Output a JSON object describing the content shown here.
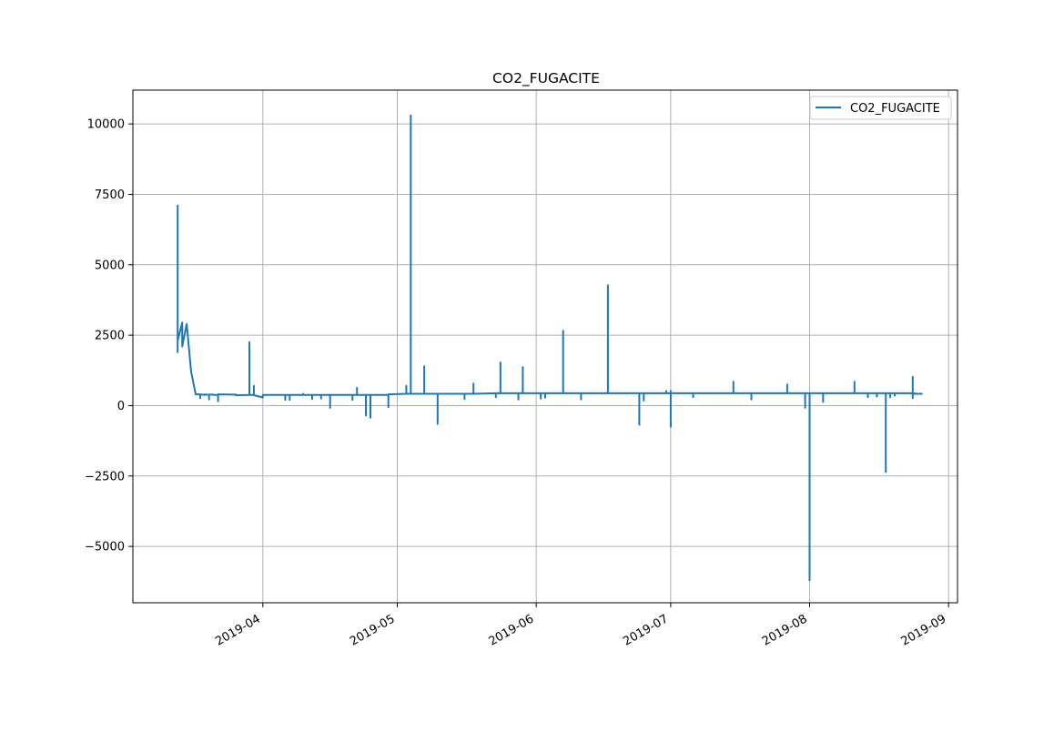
{
  "chart_data": {
    "type": "line",
    "title": "CO2_FUGACITE",
    "xlabel": "",
    "ylabel": "",
    "x_type": "date",
    "xlim": [
      "2019-03-03",
      "2019-09-03"
    ],
    "ylim": [
      -7000,
      11200
    ],
    "x_ticks": [
      "2019-04-01",
      "2019-05-01",
      "2019-06-01",
      "2019-07-01",
      "2019-08-01",
      "2019-09-01"
    ],
    "x_tick_labels": [
      "2019-04",
      "2019-05",
      "2019-06",
      "2019-07",
      "2019-08",
      "2019-09"
    ],
    "y_ticks": [
      -5000,
      -2500,
      0,
      2500,
      5000,
      7500,
      10000
    ],
    "y_tick_labels": [
      "−5000",
      "−2500",
      "0",
      "2500",
      "5000",
      "7500",
      "10000"
    ],
    "grid": true,
    "legend_position": "top-right",
    "colors": {
      "series": "#1f77b4",
      "grid": "#b0b0b0"
    },
    "series": [
      {
        "name": "CO2_FUGACITE",
        "x": [
          "2019-03-13",
          "2019-03-13",
          "2019-03-13",
          "2019-03-13",
          "2019-03-14",
          "2019-03-14",
          "2019-03-15",
          "2019-03-16",
          "2019-03-17",
          "2019-03-17",
          "2019-03-18",
          "2019-03-18",
          "2019-03-18",
          "2019-03-19",
          "2019-03-19",
          "2019-03-20",
          "2019-03-20",
          "2019-03-20",
          "2019-03-20",
          "2019-03-20",
          "2019-03-21",
          "2019-03-21",
          "2019-03-22",
          "2019-03-22",
          "2019-03-22",
          "2019-03-22",
          "2019-03-26",
          "2019-03-26",
          "2019-03-26",
          "2019-03-29",
          "2019-03-29",
          "2019-03-29",
          "2019-03-29",
          "2019-03-29",
          "2019-03-30",
          "2019-03-30",
          "2019-03-30",
          "2019-04-01",
          "2019-04-01",
          "2019-04-01",
          "2019-04-06",
          "2019-04-06",
          "2019-04-06",
          "2019-04-07",
          "2019-04-07",
          "2019-04-07",
          "2019-04-10",
          "2019-04-10",
          "2019-04-10",
          "2019-04-12",
          "2019-04-12",
          "2019-04-12",
          "2019-04-14",
          "2019-04-14",
          "2019-04-14",
          "2019-04-16",
          "2019-04-16",
          "2019-04-16",
          "2019-04-16",
          "2019-04-16",
          "2019-04-21",
          "2019-04-21",
          "2019-04-21",
          "2019-04-22",
          "2019-04-22",
          "2019-04-22",
          "2019-04-24",
          "2019-04-24",
          "2019-04-24",
          "2019-04-25",
          "2019-04-25",
          "2019-04-25",
          "2019-04-29",
          "2019-04-29",
          "2019-04-29",
          "2019-05-03",
          "2019-05-03",
          "2019-05-03",
          "2019-05-04",
          "2019-05-04",
          "2019-05-04",
          "2019-05-07",
          "2019-05-07",
          "2019-05-07",
          "2019-05-07",
          "2019-05-07",
          "2019-05-10",
          "2019-05-10",
          "2019-05-10",
          "2019-05-16",
          "2019-05-16",
          "2019-05-16",
          "2019-05-18",
          "2019-05-18",
          "2019-05-18",
          "2019-05-23",
          "2019-05-23",
          "2019-05-23",
          "2019-05-24",
          "2019-05-24",
          "2019-05-24",
          "2019-05-28",
          "2019-05-28",
          "2019-05-28",
          "2019-05-29",
          "2019-05-29",
          "2019-05-29",
          "2019-06-02",
          "2019-06-02",
          "2019-06-02",
          "2019-06-03",
          "2019-06-03",
          "2019-06-03",
          "2019-06-07",
          "2019-06-07",
          "2019-06-07",
          "2019-06-11",
          "2019-06-11",
          "2019-06-11",
          "2019-06-17",
          "2019-06-17",
          "2019-06-17",
          "2019-06-20",
          "2019-06-20",
          "2019-06-20",
          "2019-06-24",
          "2019-06-24",
          "2019-06-24",
          "2019-06-25",
          "2019-06-25",
          "2019-06-25",
          "2019-06-30",
          "2019-06-30",
          "2019-06-30",
          "2019-07-01",
          "2019-07-01",
          "2019-07-01",
          "2019-07-01",
          "2019-07-01",
          "2019-07-01",
          "2019-07-06",
          "2019-07-06",
          "2019-07-06",
          "2019-07-15",
          "2019-07-15",
          "2019-07-15",
          "2019-07-19",
          "2019-07-19",
          "2019-07-19",
          "2019-07-27",
          "2019-07-27",
          "2019-07-27",
          "2019-07-31",
          "2019-07-31",
          "2019-07-31",
          "2019-08-01",
          "2019-08-01",
          "2019-08-01",
          "2019-08-04",
          "2019-08-04",
          "2019-08-04",
          "2019-08-11",
          "2019-08-11",
          "2019-08-11",
          "2019-08-14",
          "2019-08-14",
          "2019-08-14",
          "2019-08-16",
          "2019-08-16",
          "2019-08-16",
          "2019-08-18",
          "2019-08-18",
          "2019-08-18",
          "2019-08-19",
          "2019-08-19",
          "2019-08-19",
          "2019-08-20",
          "2019-08-20",
          "2019-08-20",
          "2019-08-24",
          "2019-08-24",
          "2019-08-24",
          "2019-08-24",
          "2019-08-24",
          "2019-08-25",
          "2019-08-26"
        ],
        "y": [
          2950,
          1900,
          7100,
          2300,
          2950,
          2100,
          2900,
          1200,
          420,
          400,
          400,
          260,
          400,
          380,
          400,
          380,
          220,
          380,
          300,
          390,
          390,
          380,
          380,
          150,
          380,
          400,
          390,
          380,
          370,
          380,
          2250,
          380,
          1950,
          380,
          380,
          700,
          370,
          290,
          380,
          380,
          380,
          200,
          380,
          380,
          200,
          380,
          380,
          420,
          380,
          380,
          230,
          380,
          380,
          250,
          380,
          380,
          -80,
          380,
          200,
          380,
          380,
          200,
          380,
          380,
          630,
          380,
          380,
          -350,
          380,
          380,
          -430,
          380,
          380,
          -60,
          400,
          420,
          700,
          420,
          420,
          10300,
          420,
          420,
          1400,
          420,
          1380,
          420,
          420,
          -650,
          420,
          420,
          230,
          420,
          420,
          780,
          420,
          440,
          300,
          440,
          440,
          1530,
          440,
          440,
          220,
          440,
          440,
          1370,
          440,
          440,
          250,
          440,
          440,
          280,
          440,
          440,
          2660,
          440,
          440,
          220,
          440,
          440,
          4270,
          440,
          440,
          440,
          440,
          440,
          -680,
          440,
          440,
          180,
          440,
          440,
          520,
          440,
          440,
          -750,
          440,
          440,
          520,
          440,
          440,
          300,
          440,
          440,
          850,
          440,
          440,
          220,
          440,
          440,
          750,
          440,
          440,
          -80,
          440,
          440,
          -6200,
          440,
          440,
          130,
          440,
          440,
          850,
          440,
          440,
          300,
          440,
          440,
          320,
          440,
          440,
          -2350,
          440,
          440,
          300,
          440,
          440,
          350,
          440,
          440,
          1020,
          440,
          260,
          440,
          420,
          420
        ]
      }
    ]
  }
}
